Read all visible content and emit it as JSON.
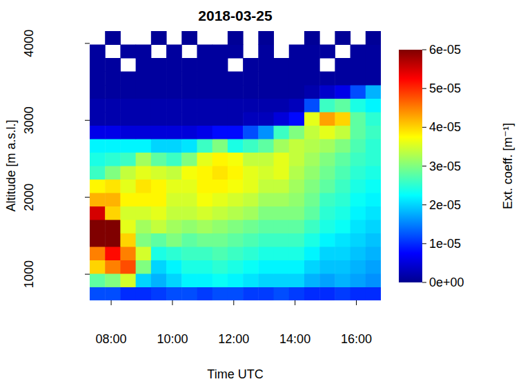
{
  "chart_data": {
    "type": "heatmap",
    "title": "2018-03-25",
    "x_label": "Time UTC",
    "y_label": "Altitude [m a.s.l.]",
    "color_label": "Ext. coeff. [m⁻¹]",
    "x": [
      7.55,
      8.05,
      8.55,
      9.05,
      9.55,
      10.05,
      10.55,
      11.05,
      11.55,
      12.05,
      12.55,
      13.05,
      13.55,
      14.05,
      14.55,
      15.05,
      15.55,
      16.05,
      16.55
    ],
    "y": [
      747.5,
      922.5,
      1097.5,
      1272.5,
      1447.5,
      1622.5,
      1797.5,
      1972.5,
      2147.5,
      2322.5,
      2497.5,
      2672.5,
      2847.5,
      3022.5,
      3197.5,
      3372.5,
      3547.5,
      3722.5,
      3897.5,
      4072.5
    ],
    "cells": [
      [
        1.2e-05,
        1.2e-05,
        1e-05,
        1e-05,
        1.1e-05,
        1.2e-05,
        1.2e-05,
        1.1e-05,
        1.2e-05,
        1.2e-05,
        1.1e-05,
        1.1e-05,
        1.2e-05,
        1.1e-05,
        1e-05,
        1e-05,
        1.1e-05,
        1e-05,
        1e-05
      ],
      [
        2.8e-05,
        3e-05,
        3.5e-05,
        2e-05,
        1.8e-05,
        2e-05,
        2.2e-05,
        2.2e-05,
        2.3e-05,
        2.2e-05,
        2.1e-05,
        2e-05,
        2e-05,
        2e-05,
        1.8e-05,
        1.7e-05,
        1.8e-05,
        1.7e-05,
        1.6e-05
      ],
      [
        4e-05,
        4.5e-05,
        4.8e-05,
        3e-05,
        2e-05,
        2.2e-05,
        2.4e-05,
        2.4e-05,
        2.5e-05,
        2.4e-05,
        2.3e-05,
        2.2e-05,
        2.2e-05,
        2.2e-05,
        2e-05,
        1.9e-05,
        1.9e-05,
        1.8e-05,
        1.7e-05
      ],
      [
        4.5e-05,
        5.2e-05,
        4.5e-05,
        3.5e-05,
        2.4e-05,
        2.5e-05,
        2.6e-05,
        2.6e-05,
        2.7e-05,
        2.6e-05,
        2.5e-05,
        2.4e-05,
        2.4e-05,
        2.4e-05,
        2.2e-05,
        2e-05,
        2e-05,
        1.9e-05,
        1.8e-05
      ],
      [
        6e-05,
        6e-05,
        4e-05,
        3e-05,
        2.8e-05,
        3e-05,
        2.8e-05,
        2.9e-05,
        2.9e-05,
        2.8e-05,
        2.7e-05,
        2.6e-05,
        2.6e-05,
        2.6e-05,
        2.4e-05,
        2.2e-05,
        2.1e-05,
        2e-05,
        1.9e-05
      ],
      [
        6e-05,
        6e-05,
        3.6e-05,
        3.2e-05,
        3.4e-05,
        3.2e-05,
        3.1e-05,
        3.2e-05,
        3.1e-05,
        3e-05,
        2.9e-05,
        2.8e-05,
        2.8e-05,
        2.8e-05,
        2.6e-05,
        2.4e-05,
        2.3e-05,
        2.1e-05,
        2e-05
      ],
      [
        5.5e-05,
        4e-05,
        3.5e-05,
        3.5e-05,
        3.6e-05,
        3.4e-05,
        3.4e-05,
        3.5e-05,
        3.4e-05,
        3.3e-05,
        3.2e-05,
        3e-05,
        3e-05,
        3e-05,
        2.8e-05,
        2.5e-05,
        2.4e-05,
        2.2e-05,
        2.1e-05
      ],
      [
        4.2e-05,
        4.2e-05,
        3.8e-05,
        3.8e-05,
        3.8e-05,
        3.5e-05,
        3.5e-05,
        3.7e-05,
        3.6e-05,
        3.5e-05,
        3.4e-05,
        3.2e-05,
        3.2e-05,
        3.1e-05,
        2.9e-05,
        2.6e-05,
        2.5e-05,
        2.3e-05,
        2.2e-05
      ],
      [
        3.8e-05,
        3.9e-05,
        3.6e-05,
        3.9e-05,
        3.8e-05,
        3.6e-05,
        3.6e-05,
        3.8e-05,
        3.8e-05,
        3.7e-05,
        3.6e-05,
        3.4e-05,
        3.4e-05,
        3.2e-05,
        3e-05,
        2.8e-05,
        2.6e-05,
        2.4e-05,
        2.3e-05
      ],
      [
        2.6e-05,
        3e-05,
        3.4e-05,
        3.6e-05,
        3.5e-05,
        3.4e-05,
        3.7e-05,
        3.8e-05,
        3.9e-05,
        3.8e-05,
        3.6e-05,
        3.5e-05,
        3.6e-05,
        3.3e-05,
        3.1e-05,
        2.9e-05,
        2.7e-05,
        2.5e-05,
        2.4e-05
      ],
      [
        2.4e-05,
        2.5e-05,
        2.6e-05,
        3.2e-05,
        2.8e-05,
        2.6e-05,
        3e-05,
        3.6e-05,
        3.8e-05,
        3.7e-05,
        3.4e-05,
        3.4e-05,
        3.6e-05,
        3.4e-05,
        3.2e-05,
        3e-05,
        2.8e-05,
        2.6e-05,
        2.5e-05
      ],
      [
        2.2e-05,
        2.2e-05,
        2.2e-05,
        2.2e-05,
        2e-05,
        2e-05,
        2.1e-05,
        2.6e-05,
        3e-05,
        2.4e-05,
        2.6e-05,
        2.8e-05,
        3.2e-05,
        3.4e-05,
        3.3e-05,
        3.2e-05,
        3e-05,
        2.7e-05,
        2.5e-05
      ],
      [
        6e-06,
        6e-06,
        5e-06,
        5e-06,
        5e-06,
        5e-06,
        5e-06,
        6e-06,
        8e-06,
        8e-06,
        1.2e-05,
        1.6e-05,
        2.6e-05,
        3e-05,
        3.4e-05,
        3.6e-05,
        3.4e-05,
        2.8e-05,
        2.6e-05
      ],
      [
        2e-06,
        2e-06,
        2e-06,
        2e-06,
        2e-06,
        2e-06,
        2e-06,
        2e-06,
        2e-06,
        2e-06,
        3e-06,
        3e-06,
        5e-06,
        8e-06,
        3.6e-05,
        4.3e-05,
        4e-05,
        2.8e-05,
        2.5e-05
      ],
      [
        2e-06,
        2e-06,
        2e-06,
        2e-06,
        2e-06,
        2e-06,
        2e-06,
        2e-06,
        2e-06,
        2e-06,
        2e-06,
        2e-06,
        2e-06,
        3e-06,
        1.2e-05,
        2.6e-05,
        2.8e-05,
        2.4e-05,
        2.2e-05
      ],
      [
        1e-06,
        1e-06,
        1e-06,
        1e-06,
        1e-06,
        1e-06,
        1e-06,
        1e-06,
        1e-06,
        1e-06,
        1e-06,
        1e-06,
        1e-06,
        1e-06,
        2e-06,
        4e-06,
        6e-06,
        1.2e-05,
        1.8e-05
      ],
      [
        1e-06,
        1e-06,
        1e-06,
        1e-06,
        1e-06,
        1e-06,
        1e-06,
        1e-06,
        1e-06,
        1e-06,
        1e-06,
        1e-06,
        1e-06,
        1e-06,
        1e-06,
        1e-06,
        1e-06,
        1e-06,
        1e-06
      ],
      [
        1e-06,
        1e-06,
        null,
        1e-06,
        1e-06,
        1e-06,
        1e-06,
        1e-06,
        1e-06,
        null,
        1e-06,
        1e-06,
        1e-06,
        1e-06,
        1e-06,
        null,
        1e-06,
        1e-06,
        1e-06
      ],
      [
        1e-06,
        null,
        1e-06,
        1e-06,
        null,
        1e-06,
        null,
        1e-06,
        1e-06,
        1e-06,
        null,
        1e-06,
        null,
        1e-06,
        1e-06,
        1e-06,
        null,
        1e-06,
        1e-06
      ],
      [
        null,
        5e-07,
        null,
        null,
        5e-07,
        null,
        5e-07,
        null,
        null,
        5e-07,
        null,
        5e-07,
        null,
        null,
        5e-07,
        null,
        5e-07,
        null,
        5e-07
      ]
    ],
    "xlim": [
      7.3,
      16.8
    ],
    "xticks": [
      {
        "value": 8,
        "label": "08:00"
      },
      {
        "value": 10,
        "label": "10:00"
      },
      {
        "value": 12,
        "label": "12:00"
      },
      {
        "value": 14,
        "label": "14:00"
      },
      {
        "value": 16,
        "label": "16:00"
      }
    ],
    "ylim": [
      660,
      4160
    ],
    "yticks": [
      1000,
      2000,
      3000,
      4000
    ],
    "color_range": [
      0,
      6e-05
    ],
    "color_ticks": [
      {
        "value": 0,
        "label": "0e+00"
      },
      {
        "value": 1e-05,
        "label": "1e-05"
      },
      {
        "value": 2e-05,
        "label": "2e-05"
      },
      {
        "value": 3e-05,
        "label": "3e-05"
      },
      {
        "value": 4e-05,
        "label": "4e-05"
      },
      {
        "value": 5e-05,
        "label": "5e-05"
      },
      {
        "value": 6e-05,
        "label": "6e-05"
      }
    ]
  }
}
